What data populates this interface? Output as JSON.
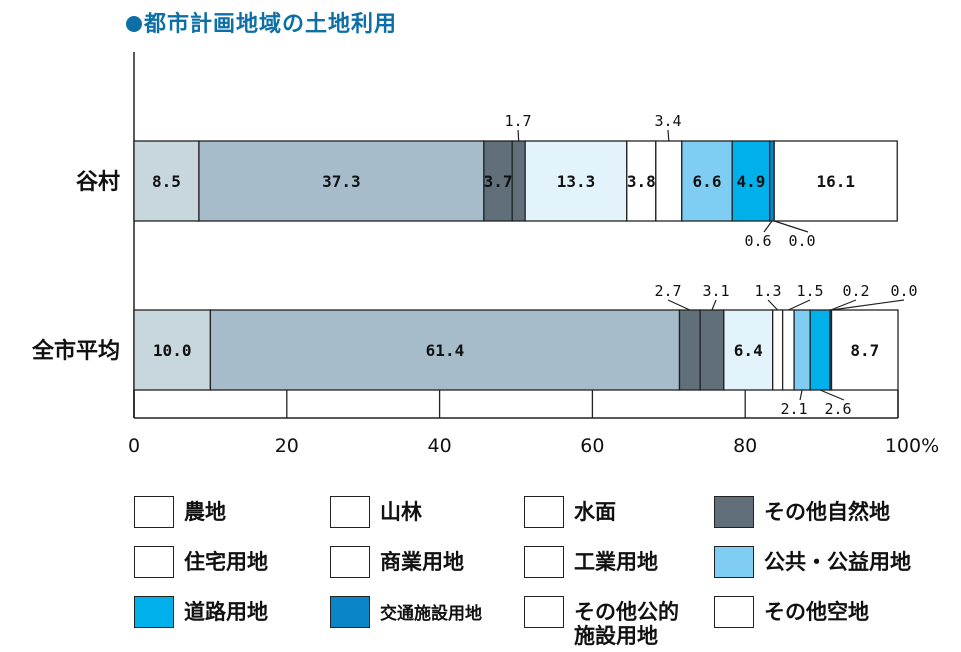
{
  "title": "都市計画地域の土地利用",
  "colors": {
    "rural": "#c8d6de",
    "forest": "#a7bccb",
    "water": "#ffffff",
    "nature": "#606f7a",
    "residential": "#e3f3fb",
    "commercial": "#ffffff",
    "industrial": "#ffffff",
    "public": "#7fcdf2",
    "road": "#00b0ea",
    "transport": "#0a86c8",
    "otherpublic": "#ffffff",
    "vacant": "#ffffff"
  },
  "chart_data": {
    "type": "bar",
    "orientation": "horizontal",
    "stacked": true,
    "categories": [
      "谷村",
      "全市平均"
    ],
    "series": [
      {
        "name": "農地",
        "values": [
          8.5,
          10.0
        ]
      },
      {
        "name": "山林",
        "values": [
          37.3,
          61.4
        ]
      },
      {
        "name": "水面",
        "values": [
          0,
          0
        ]
      },
      {
        "name": "その他自然地",
        "values": [
          3.7,
          2.7
        ]
      },
      {
        "name": "",
        "values": [
          1.7,
          3.1
        ]
      },
      {
        "name": "住宅用地",
        "values": [
          13.3,
          6.4
        ]
      },
      {
        "name": "商業用地",
        "values": [
          3.8,
          1.3
        ]
      },
      {
        "name": "工業用地",
        "values": [
          3.4,
          1.5
        ]
      },
      {
        "name": "公共・公益用地",
        "values": [
          6.6,
          2.1
        ]
      },
      {
        "name": "道路用地",
        "values": [
          4.9,
          2.6
        ]
      },
      {
        "name": "交通施設用地",
        "values": [
          0.6,
          0.2
        ]
      },
      {
        "name": "その他公的施設用地",
        "values": [
          0.0,
          0.0
        ]
      },
      {
        "name": "その他空地",
        "values": [
          16.1,
          8.7
        ]
      }
    ],
    "xlim": [
      0,
      100
    ],
    "x_ticks": [
      "0",
      "20",
      "40",
      "60",
      "80",
      "100%"
    ],
    "bar_labels": [
      [
        "8.5",
        "37.3",
        "",
        "3.7",
        "1.7",
        "13.3",
        "3.8",
        "3.4",
        "6.6",
        "4.9",
        "0.6",
        "0.0",
        "16.1"
      ],
      [
        "10.0",
        "61.4",
        "",
        "2.7",
        "3.1",
        "6.4",
        "1.3",
        "1.5",
        "2.1",
        "2.6",
        "0.2",
        "0.0",
        "8.7"
      ]
    ]
  },
  "legend": [
    {
      "label": "農地",
      "color": "#ffffff"
    },
    {
      "label": "山林",
      "color": "#ffffff"
    },
    {
      "label": "水面",
      "color": "#ffffff"
    },
    {
      "label": "その他自然地",
      "color": "#606f7a"
    },
    {
      "label": "住宅用地",
      "color": "#ffffff"
    },
    {
      "label": "商業用地",
      "color": "#ffffff"
    },
    {
      "label": "工業用地",
      "color": "#ffffff"
    },
    {
      "label": "公共・公益用地",
      "color": "#7fcdf2"
    },
    {
      "label": "道路用地",
      "color": "#00b0ea"
    },
    {
      "label": "交通施設用地",
      "color": "#0a86c8"
    },
    {
      "label": "その他公的\n施設用地",
      "color": "#ffffff"
    },
    {
      "label": "その他空地",
      "color": "#ffffff"
    }
  ]
}
